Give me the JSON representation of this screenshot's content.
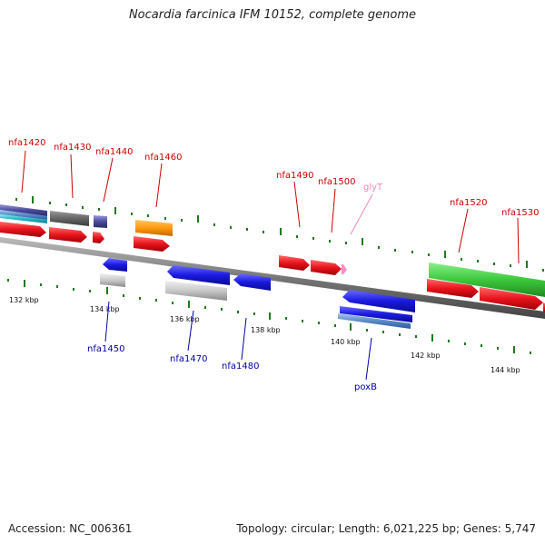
{
  "header": {
    "title": "Nocardia farcinica IFM 10152, complete genome"
  },
  "footer": {
    "accession": "Accession: NC_006361",
    "summary": "Topology: circular; Length: 6,021,225 bp; Genes: 5,747"
  },
  "scale_labels": [
    "132 kbp",
    "134 kbp",
    "136 kbp",
    "138 kbp",
    "140 kbp",
    "142 kbp",
    "144 kbp"
  ],
  "top_gene_labels": [
    "nfa1420",
    "nfa1430",
    "nfa1440",
    "nfa1460",
    "nfa1490",
    "nfa1500",
    "glyT",
    "nfa1520",
    "nfa1530"
  ],
  "bottom_gene_labels": [
    "nfa1450",
    "nfa1470",
    "nfa1480",
    "poxB"
  ],
  "colors": {
    "forward_gene": "#e8141c",
    "reverse_gene": "#1a1ae0",
    "trna": "#f090c8",
    "backbone": "#777777",
    "tick": "#1f7a1f",
    "label_forward": "#cc0000",
    "label_reverse": "#0000aa",
    "label_trna": "#ee88bb"
  }
}
